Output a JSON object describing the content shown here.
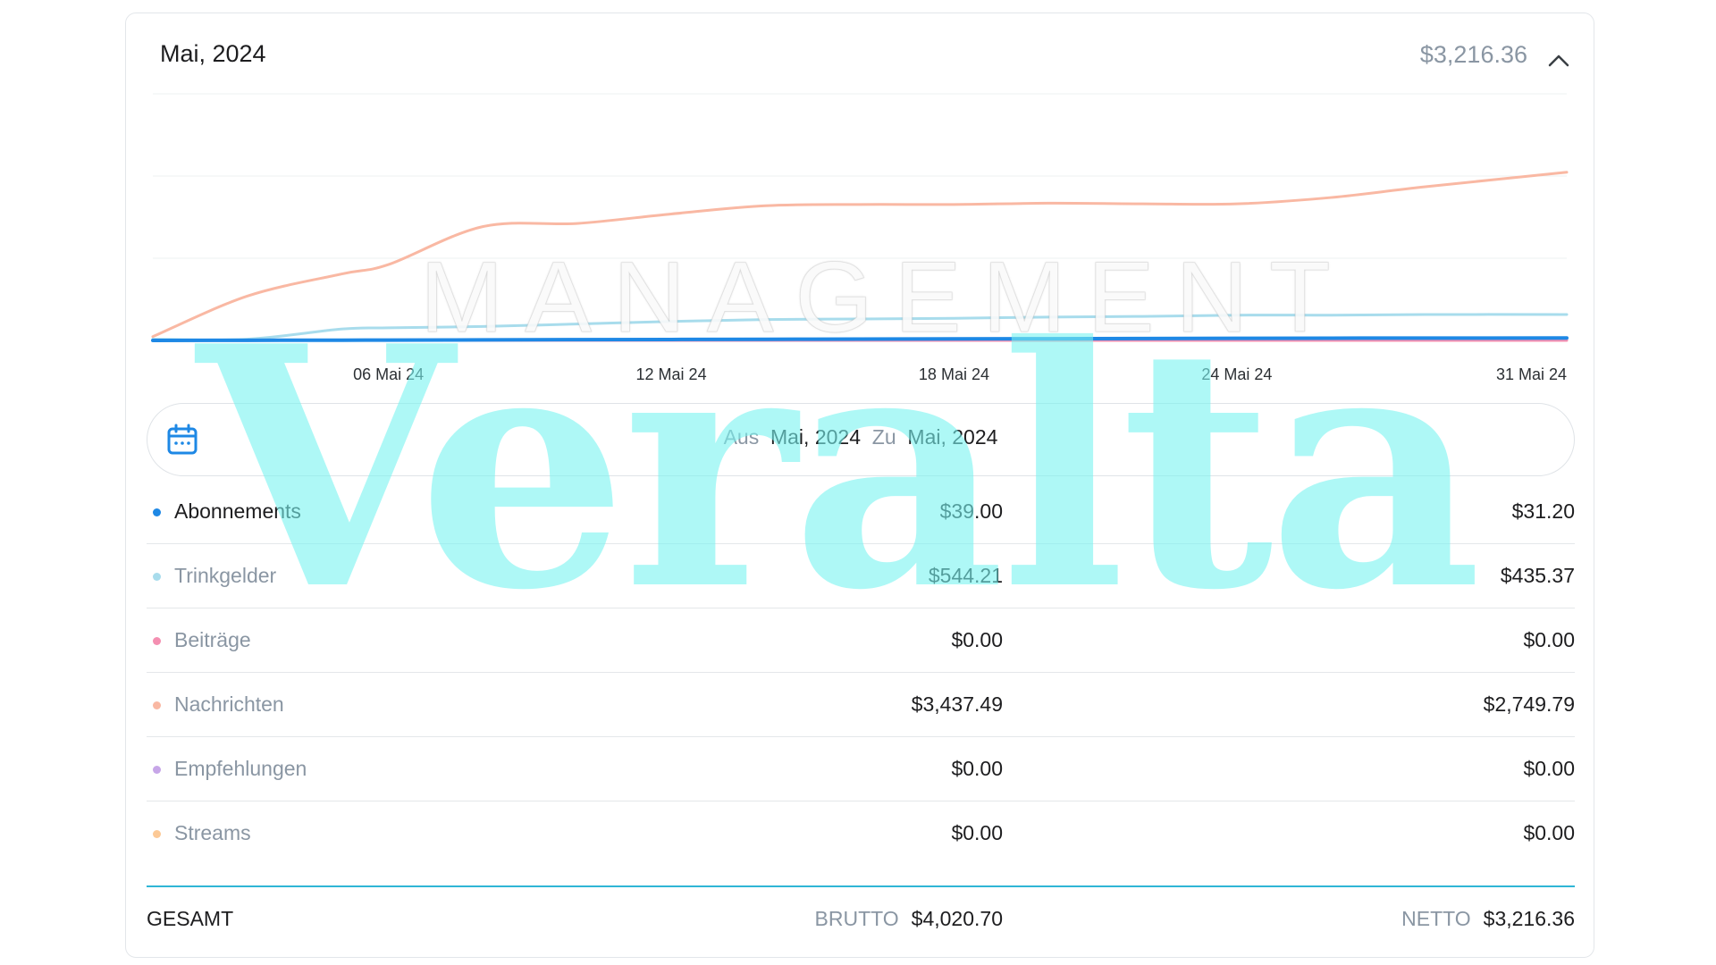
{
  "header": {
    "title": "Mai, 2024",
    "total": "$3,216.36"
  },
  "chart_data": {
    "type": "line",
    "x_tick_labels": [
      "06 Mai 24",
      "12 Mai 24",
      "18 Mai 24",
      "24 Mai 24",
      "31 Mai 24"
    ],
    "x": [
      "01 Mai",
      "03 Mai",
      "05 Mai",
      "06 Mai",
      "08 Mai",
      "10 Mai",
      "12 Mai",
      "14 Mai",
      "16 Mai",
      "18 Mai",
      "20 Mai",
      "22 Mai",
      "24 Mai",
      "26 Mai",
      "28 Mai",
      "31 Mai"
    ],
    "ylim": [
      0,
      3900
    ],
    "grid": true,
    "series": [
      {
        "color": "#f9b8a3",
        "values": [
          60,
          700,
          1050,
          1200,
          1800,
          1850,
          2000,
          2130,
          2150,
          2150,
          2170,
          2160,
          2160,
          2260,
          2430,
          2660
        ]
      },
      {
        "color": "#a8dcec",
        "values": [
          20,
          20,
          180,
          200,
          220,
          260,
          300,
          330,
          340,
          350,
          370,
          380,
          400,
          400,
          410,
          410
        ]
      },
      {
        "color": "#1e88e5",
        "values": [
          0,
          2,
          4,
          5,
          8,
          12,
          15,
          18,
          21,
          24,
          27,
          30,
          33,
          36,
          37,
          39
        ]
      },
      {
        "color": "#f48fb1",
        "values": [
          0,
          0,
          0,
          0,
          0,
          0,
          0,
          0,
          0,
          0,
          0,
          0,
          0,
          0,
          0,
          0
        ]
      }
    ]
  },
  "date_range": {
    "from_label": "Aus",
    "from_value": "Mai, 2024",
    "to_label": "Zu",
    "to_value": "Mai, 2024"
  },
  "rows": [
    {
      "label": "Abonnements",
      "color": "#1e88e5",
      "gross": "$39.00",
      "net": "$31.20"
    },
    {
      "label": "Trinkgelder",
      "color": "#a8dcec",
      "gross": "$544.21",
      "net": "$435.37"
    },
    {
      "label": "Beiträge",
      "color": "#f48fb1",
      "gross": "$0.00",
      "net": "$0.00"
    },
    {
      "label": "Nachrichten",
      "color": "#f9b8a3",
      "gross": "$3,437.49",
      "net": "$2,749.79"
    },
    {
      "label": "Empfehlungen",
      "color": "#c7a6e8",
      "gross": "$0.00",
      "net": "$0.00"
    },
    {
      "label": "Streams",
      "color": "#fcc996",
      "gross": "$0.00",
      "net": "$0.00"
    }
  ],
  "totals": {
    "label": "GESAMT",
    "gross_label": "BRUTTO",
    "gross_value": "$4,020.70",
    "net_label": "NETTO",
    "net_value": "$3,216.36"
  },
  "watermarks": {
    "management": "MANAGEMENT",
    "brand": "Veralta"
  },
  "icons": {
    "collapse": "chevron-up-icon",
    "calendar": "calendar-icon"
  }
}
